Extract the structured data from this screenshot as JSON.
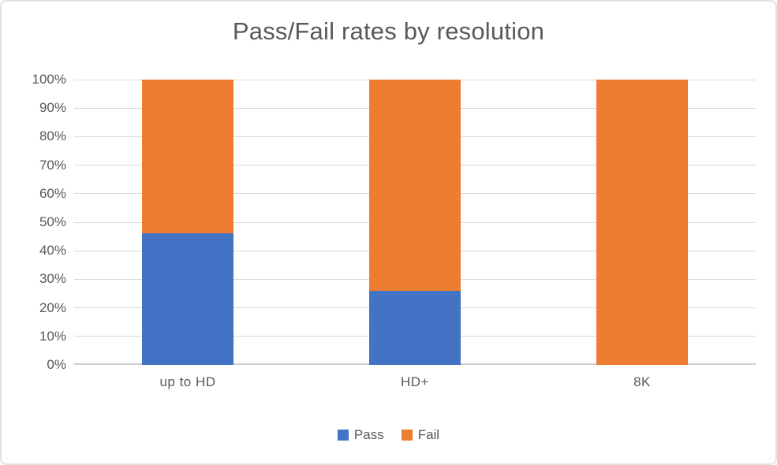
{
  "chart_data": {
    "type": "bar",
    "variant": "stacked-100-percent-column",
    "title": "Pass/Fail rates by resolution",
    "categories": [
      "up to HD",
      "HD+",
      "8K"
    ],
    "series": [
      {
        "name": "Pass",
        "color": "#4472C4",
        "values": [
          46,
          26,
          0
        ]
      },
      {
        "name": "Fail",
        "color": "#ED7D31",
        "values": [
          54,
          74,
          100
        ]
      }
    ],
    "y_ticks": [
      "0%",
      "10%",
      "20%",
      "30%",
      "40%",
      "50%",
      "60%",
      "70%",
      "80%",
      "90%",
      "100%"
    ],
    "ylim": [
      0,
      100
    ],
    "xlabel": "",
    "ylabel": "",
    "grid": true,
    "legend_position": "bottom"
  },
  "colors": {
    "title_text": "#595959",
    "axis_text": "#595959",
    "gridline": "#D9D9D9",
    "axis_line": "#CFCFCF",
    "chart_border": "#E2E2E2",
    "background": "#FFFFFF"
  }
}
